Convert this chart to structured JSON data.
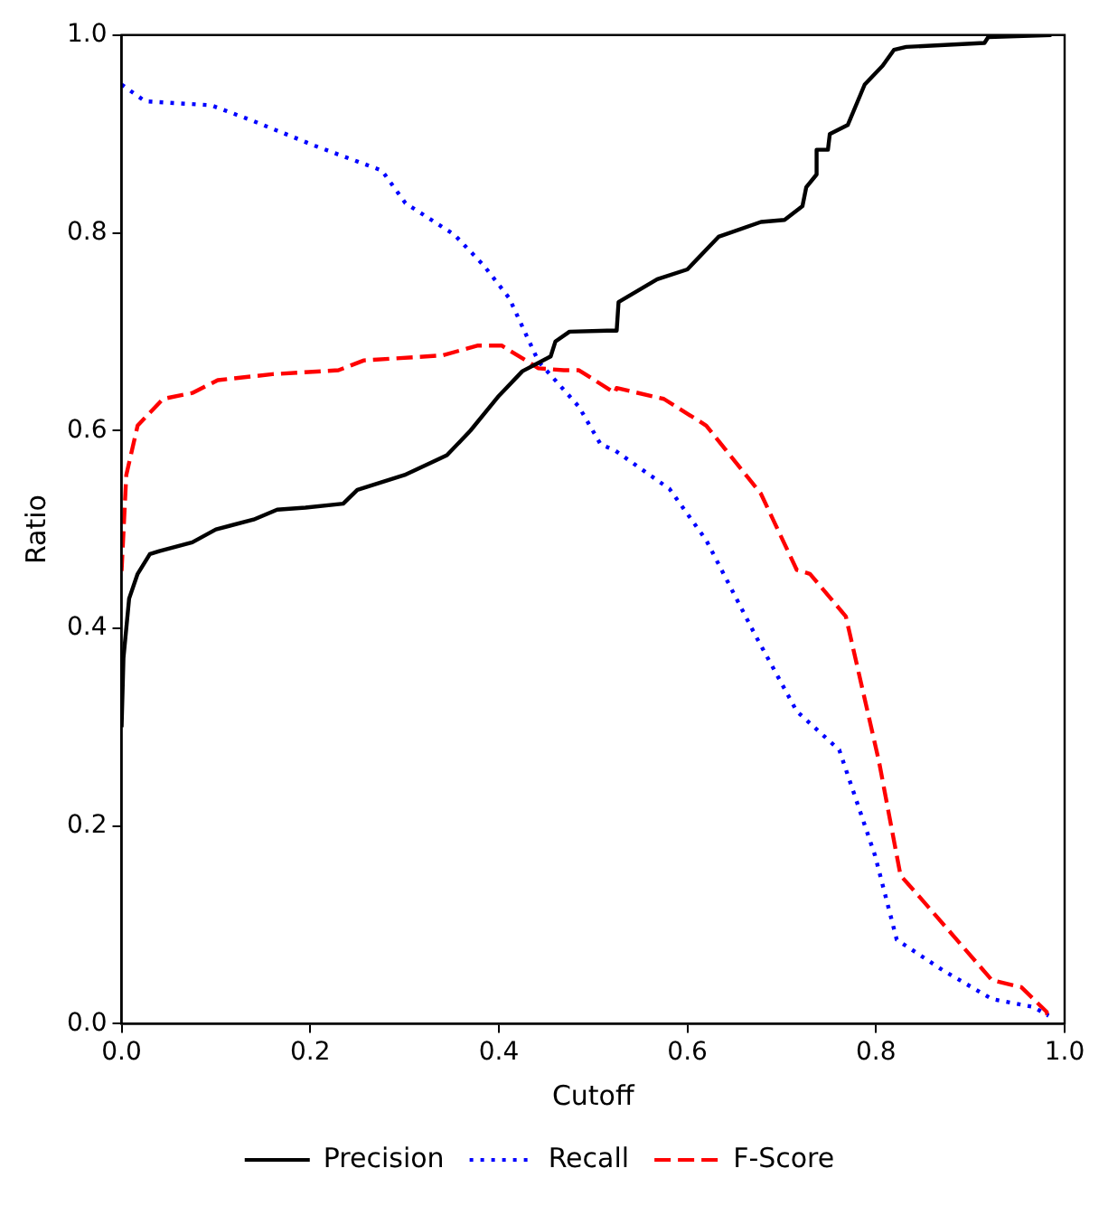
{
  "chart_data": {
    "type": "line",
    "xlabel": "Cutoff",
    "ylabel": "Ratio",
    "xlim": [
      0,
      1
    ],
    "ylim": [
      0,
      1
    ],
    "xticks": [
      {
        "value": 0,
        "label": "0.0"
      },
      0.2,
      0.4,
      0.6,
      0.8,
      {
        "value": 1,
        "label": "1.0"
      }
    ],
    "yticks": [
      {
        "value": 0,
        "label": "0.0"
      },
      0.2,
      0.4,
      0.6,
      0.8,
      {
        "value": 1,
        "label": "1.0"
      }
    ],
    "grid": false,
    "legend": "bottom",
    "marker": "none",
    "series": [
      {
        "name": "Precision",
        "color": "#000000",
        "line_style": "solid",
        "x": [
          0,
          0.002,
          0.008,
          0.017,
          0.03,
          0.04,
          0.075,
          0.1,
          0.14,
          0.165,
          0.195,
          0.235,
          0.25,
          0.3,
          0.345,
          0.37,
          0.4,
          0.425,
          0.455,
          0.46,
          0.475,
          0.515,
          0.525,
          0.527,
          0.568,
          0.6,
          0.633,
          0.678,
          0.703,
          0.722,
          0.726,
          0.737,
          0.737,
          0.749,
          0.751,
          0.77,
          0.788,
          0.807,
          0.819,
          0.832,
          0.915,
          0.919,
          0.986
        ],
        "values": [
          0.3,
          0.37,
          0.43,
          0.455,
          0.475,
          0.478,
          0.487,
          0.5,
          0.51,
          0.52,
          0.522,
          0.526,
          0.54,
          0.555,
          0.575,
          0.6,
          0.635,
          0.66,
          0.675,
          0.69,
          0.7,
          0.701,
          0.701,
          0.73,
          0.753,
          0.763,
          0.796,
          0.811,
          0.813,
          0.827,
          0.846,
          0.859,
          0.884,
          0.884,
          0.9,
          0.909,
          0.95,
          0.969,
          0.985,
          0.988,
          0.992,
          0.998,
          1.0
        ]
      },
      {
        "name": "Recall",
        "color": "#0000ff",
        "line_style": "dotted",
        "x": [
          0,
          0.025,
          0.095,
          0.14,
          0.205,
          0.276,
          0.301,
          0.353,
          0.384,
          0.411,
          0.442,
          0.485,
          0.508,
          0.523,
          0.581,
          0.62,
          0.672,
          0.716,
          0.761,
          0.799,
          0.822,
          0.871,
          0.923,
          0.967,
          0.983
        ],
        "values": [
          0.95,
          0.933,
          0.929,
          0.913,
          0.888,
          0.863,
          0.83,
          0.798,
          0.767,
          0.734,
          0.67,
          0.624,
          0.586,
          0.58,
          0.541,
          0.489,
          0.393,
          0.316,
          0.277,
          0.17,
          0.085,
          0.054,
          0.025,
          0.017,
          0.008
        ]
      },
      {
        "name": "F-Score",
        "color": "#ff0000",
        "line_style": "dashed",
        "x": [
          0,
          0.005,
          0.017,
          0.044,
          0.075,
          0.102,
          0.16,
          0.23,
          0.257,
          0.34,
          0.378,
          0.403,
          0.442,
          0.469,
          0.485,
          0.523,
          0.525,
          0.575,
          0.62,
          0.678,
          0.716,
          0.73,
          0.768,
          0.803,
          0.826,
          0.851,
          0.923,
          0.954,
          0.981,
          0.983
        ],
        "values": [
          0.458,
          0.555,
          0.605,
          0.632,
          0.638,
          0.651,
          0.657,
          0.661,
          0.671,
          0.676,
          0.686,
          0.686,
          0.663,
          0.661,
          0.661,
          0.638,
          0.643,
          0.632,
          0.605,
          0.536,
          0.459,
          0.455,
          0.412,
          0.266,
          0.15,
          0.123,
          0.044,
          0.037,
          0.012,
          0.002
        ]
      }
    ]
  }
}
